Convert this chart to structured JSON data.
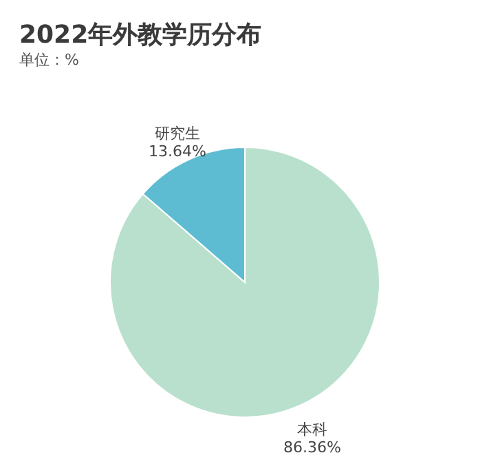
{
  "chart_data": {
    "type": "pie",
    "title": "2022年外教学历分布",
    "subtitle": "单位：%",
    "categories": [
      "本科",
      "研究生"
    ],
    "values": [
      86.36,
      13.64
    ],
    "value_labels": [
      "86.36%",
      "13.64%"
    ],
    "colors": [
      "#b9e0cd",
      "#5dbcd2"
    ]
  }
}
